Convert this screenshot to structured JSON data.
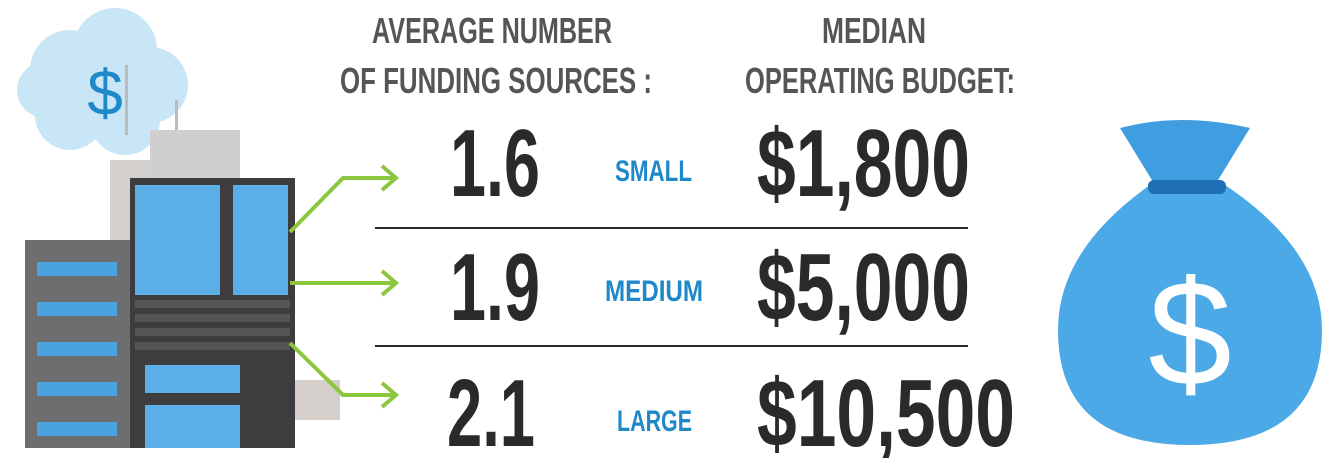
{
  "headers": {
    "funding": [
      "AVERAGE NUMBER",
      "OF FUNDING SOURCES :"
    ],
    "budget": [
      "MEDIAN",
      "OPERATING BUDGET:"
    ]
  },
  "rows": [
    {
      "sources": "1.6",
      "size": "SMALL",
      "budget": "$1,800"
    },
    {
      "sources": "1.9",
      "size": "MEDIUM",
      "budget": "$5,000"
    },
    {
      "sources": "2.1",
      "size": "LARGE",
      "budget": "$10,500"
    }
  ],
  "icons": {
    "cloud_symbol": "$",
    "bag_symbol": "$"
  }
}
